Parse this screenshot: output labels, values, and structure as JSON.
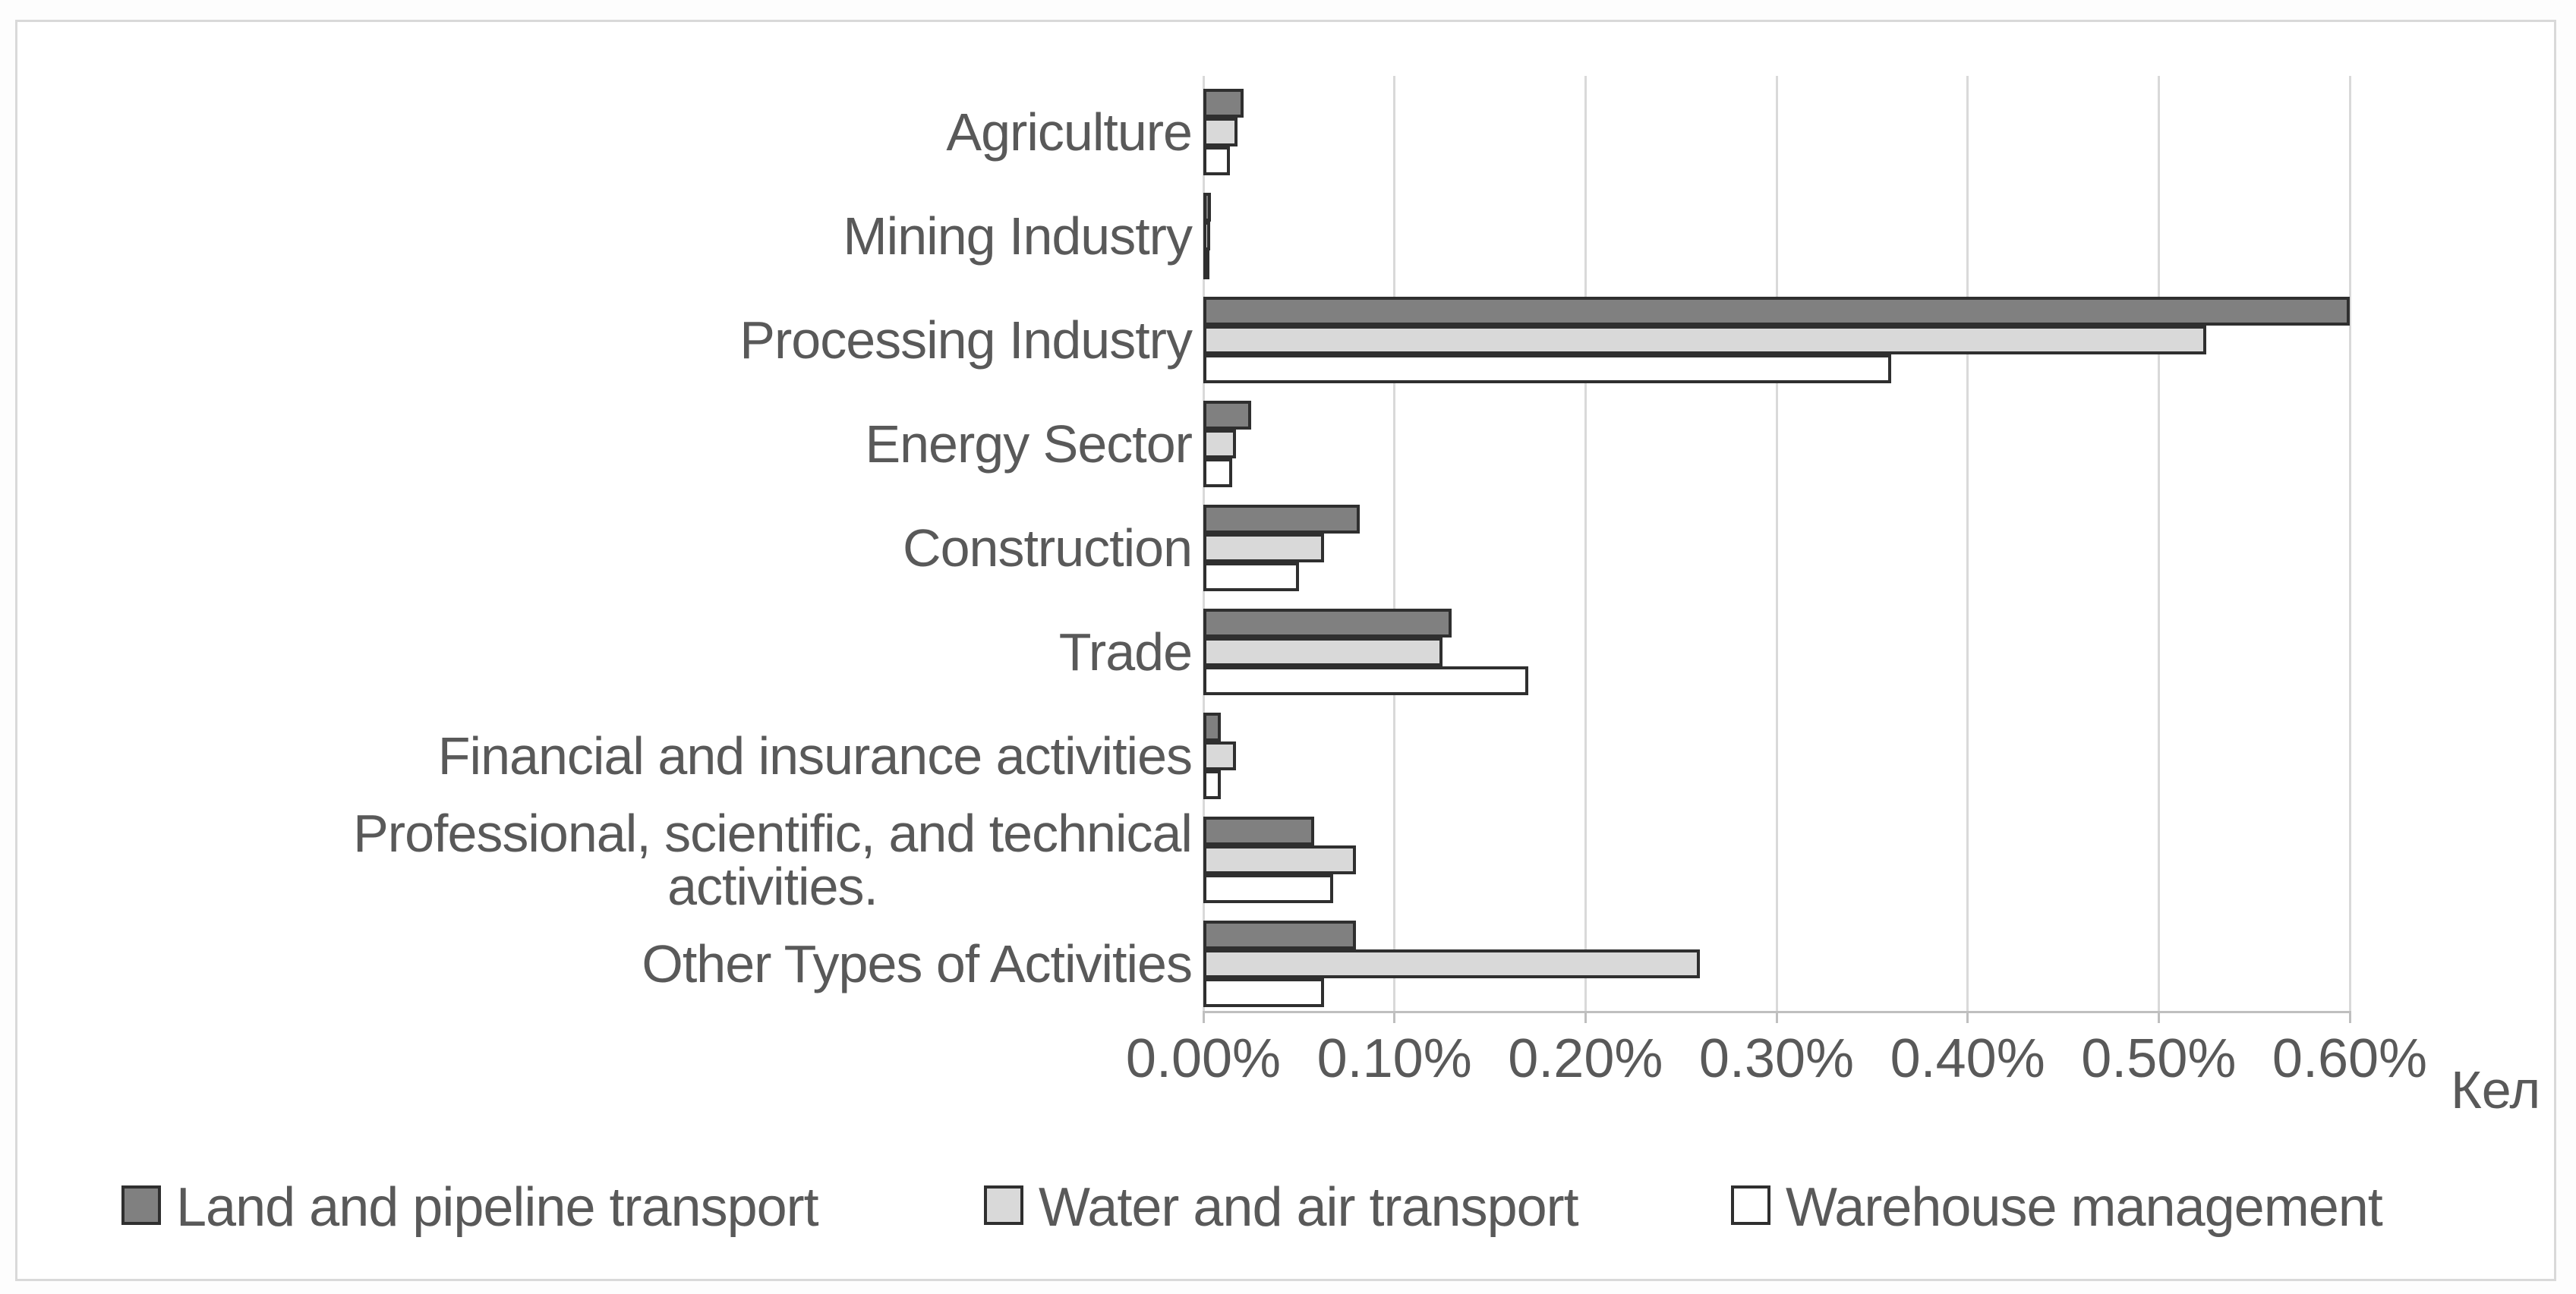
{
  "chart_data": {
    "type": "bar",
    "orientation": "horizontal",
    "title": "",
    "xlabel_unit": "Кел",
    "categories": [
      "Agriculture",
      "Mining Industry",
      "Processing Industry",
      "Energy Sector",
      "Construction",
      "Trade",
      "Financial and insurance activities",
      "Professional, scientific, and technical\nactivities.",
      "Other Types of Activities"
    ],
    "value_unit": "percent",
    "series": [
      {
        "name": "Land and pipeline transport",
        "color": "#808080",
        "values": [
          0.021,
          0.004,
          0.6,
          0.025,
          0.082,
          0.13,
          0.009,
          0.058,
          0.08
        ]
      },
      {
        "name": "Water and air transport",
        "color": "#d9d9d9",
        "values": [
          0.018,
          0.0035,
          0.525,
          0.017,
          0.063,
          0.125,
          0.017,
          0.08,
          0.26
        ]
      },
      {
        "name": "Warehouse management",
        "color": "#ffffff",
        "values": [
          0.014,
          0.002,
          0.36,
          0.015,
          0.05,
          0.17,
          0.009,
          0.068,
          0.063
        ]
      }
    ],
    "x_axis": {
      "min": 0,
      "max": 0.6,
      "tick_step": 0.1,
      "ticks": [
        "0.00%",
        "0.10%",
        "0.20%",
        "0.30%",
        "0.40%",
        "0.50%",
        "0.60%"
      ],
      "unit_label": "Кел"
    },
    "grid": "vertical",
    "legend_position": "bottom",
    "style": {
      "bar_border_color": "#2f2f2f",
      "gridline_color": "#d9d9d9",
      "text_color": "#595959",
      "frame_border_color": "#d9d9d9",
      "background": "#ffffff"
    }
  }
}
